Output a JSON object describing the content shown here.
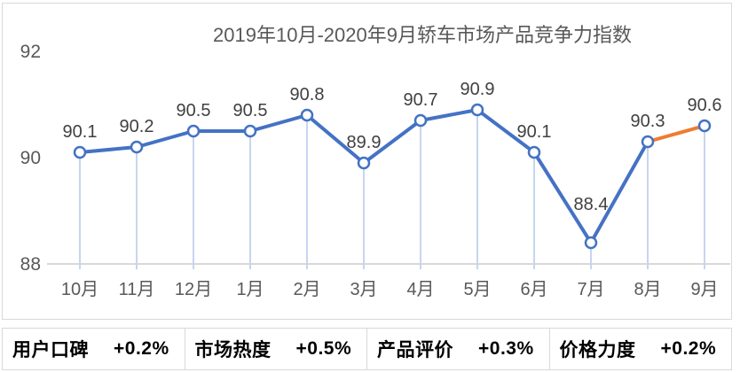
{
  "chart": {
    "title": "2019年10月-2020年9月轿车市场产品竞争力指数"
  },
  "chart_data": {
    "type": "line",
    "title": "2019年10月-2020年9月轿车市场产品竞争力指数",
    "categories": [
      "10月",
      "11月",
      "12月",
      "1月",
      "2月",
      "3月",
      "4月",
      "5月",
      "6月",
      "7月",
      "8月",
      "9月"
    ],
    "values": [
      90.1,
      90.2,
      90.5,
      90.5,
      90.8,
      89.9,
      90.7,
      90.9,
      90.1,
      88.4,
      90.3,
      90.6
    ],
    "ylabel": "",
    "xlabel": "",
    "ylim": [
      88,
      92
    ],
    "yticks": [
      92,
      90,
      88
    ],
    "grid": false,
    "legend": "none",
    "marker": "circle-open",
    "drop_lines": true,
    "highlight_segment": {
      "from": "8月",
      "to": "9月",
      "index": 10
    },
    "colors": {
      "line": "#4472C4",
      "highlight": "#ED7D31",
      "drop_line": "#C7D5EF",
      "axis": "#D9D9D9",
      "data_label": "#404040",
      "axis_label": "#595959",
      "title": "#595959",
      "marker_fill": "#FFFFFF"
    }
  },
  "metrics": {
    "items": [
      {
        "label": "用户口碑",
        "value": "+0.2%"
      },
      {
        "label": "市场热度",
        "value": "+0.5%"
      },
      {
        "label": "产品评价",
        "value": "+0.3%"
      },
      {
        "label": "价格力度",
        "value": "+0.2%"
      }
    ]
  }
}
